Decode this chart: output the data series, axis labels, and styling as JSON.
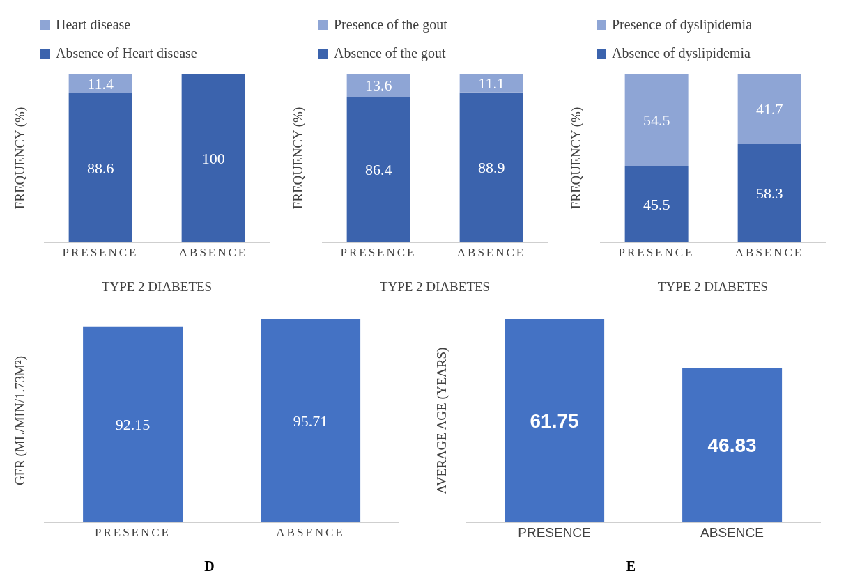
{
  "chart_data": [
    {
      "type": "bar",
      "stacked": true,
      "legend": "top left",
      "tick_labels": "x",
      "data_labels": true,
      "xlabel": "TYPE 2 DIABETES",
      "ylabel": "FREQUENCY (%)",
      "categories": [
        "PRESENCE",
        "ABSENCE"
      ],
      "series": [
        {
          "name": "Absence of Heart disease",
          "color": "#3b63ad",
          "values": [
            88.6,
            100
          ]
        },
        {
          "name": "Heart disease",
          "color": "#8ea5d5",
          "values": [
            11.4,
            null
          ]
        }
      ]
    },
    {
      "type": "bar",
      "stacked": true,
      "legend": "top left",
      "tick_labels": "x",
      "data_labels": true,
      "xlabel": "TYPE 2 DIABETES",
      "ylabel": "FREQUENCY (%)",
      "categories": [
        "PRESENCE",
        "ABSENCE"
      ],
      "series": [
        {
          "name": "Absence of the gout",
          "color": "#3b63ad",
          "values": [
            86.4,
            88.9
          ]
        },
        {
          "name": "Presence of the gout",
          "color": "#8ea5d5",
          "values": [
            13.6,
            11.1
          ]
        }
      ]
    },
    {
      "type": "bar",
      "stacked": true,
      "legend": "top left",
      "tick_labels": "x",
      "data_labels": true,
      "xlabel": "TYPE 2 DIABETES",
      "ylabel": "FREQUENCY (%)",
      "categories": [
        "PRESENCE",
        "ABSENCE"
      ],
      "series": [
        {
          "name": "Absence of dyslipidemia",
          "color": "#3b63ad",
          "values": [
            45.5,
            58.3
          ]
        },
        {
          "name": "Presence of dyslipidemia",
          "color": "#8ea5d5",
          "values": [
            54.5,
            41.7
          ]
        }
      ]
    },
    {
      "type": "bar",
      "tick_labels": "x",
      "data_labels": true,
      "ylabel": "GFR (ML/MIN/1.73M²)",
      "categories": [
        "PRESENCE",
        "ABSENCE"
      ],
      "annotations": [
        "D"
      ],
      "series": [
        {
          "color": "#4472c4",
          "values": [
            92.15,
            95.71
          ]
        }
      ]
    },
    {
      "type": "bar",
      "tick_labels": "x",
      "data_labels": true,
      "ylabel": "AVERAGE AGE (YEARS)",
      "categories": [
        "PRESENCE",
        "ABSENCE"
      ],
      "annotations": [
        "E"
      ],
      "series": [
        {
          "color": "#4472c4",
          "values": [
            61.75,
            46.83
          ]
        }
      ]
    }
  ]
}
